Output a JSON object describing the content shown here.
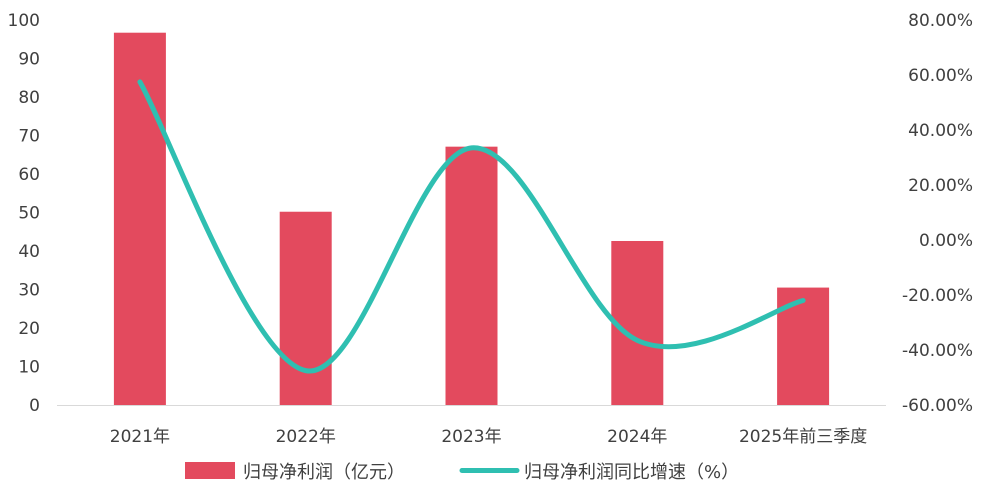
{
  "chart_data": {
    "type": "bar",
    "categories": [
      "2021年",
      "2022年",
      "2023年",
      "2024年",
      "2025年前三季度"
    ],
    "series": [
      {
        "name": "归母净利润（亿元）",
        "type": "bar",
        "axis": "left",
        "color": "#e34a5e",
        "values": [
          96.7,
          50.2,
          67.1,
          42.6,
          30.5
        ]
      },
      {
        "name": "归母净利润同比增速（%）",
        "type": "line",
        "axis": "right",
        "color": "#2fbfb1",
        "values": [
          0.575,
          -0.475,
          0.335,
          -0.365,
          -0.22
        ]
      }
    ],
    "y_left": {
      "range": [
        0,
        100
      ],
      "ticks": [
        "0",
        "10",
        "20",
        "30",
        "40",
        "50",
        "60",
        "70",
        "80",
        "90",
        "100"
      ]
    },
    "y_right": {
      "range": [
        -0.6,
        0.8
      ],
      "ticks": [
        "-60.00%",
        "-40.00%",
        "-20.00%",
        "0.00%",
        "20.00%",
        "40.00%",
        "60.00%",
        "80.00%"
      ]
    },
    "grid": false,
    "legend": "bottom"
  }
}
